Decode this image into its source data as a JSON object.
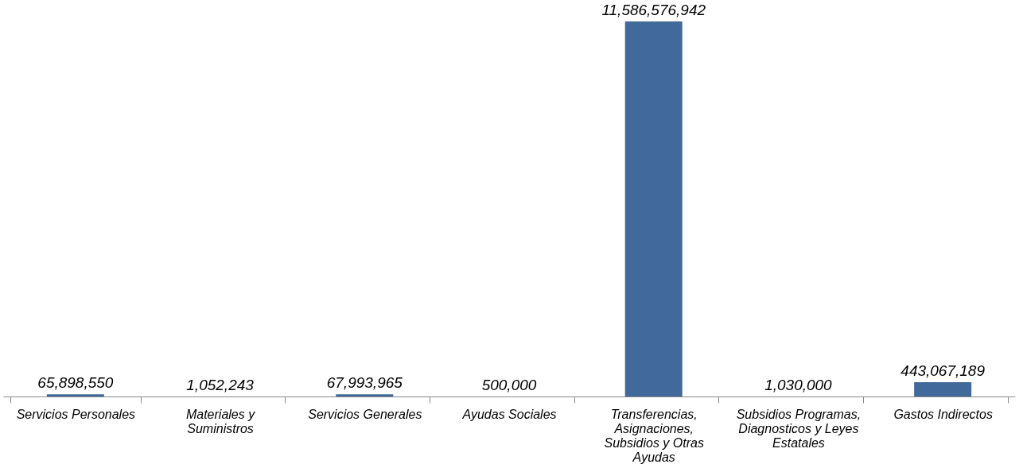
{
  "chart_data": {
    "type": "bar",
    "categories": [
      "Servicios Personales",
      "Materiales y Suministros",
      "Servicios Generales",
      "Ayudas Sociales",
      "Transferencias, Asignaciones, Subsidios y Otras Ayudas",
      "Subsidios Programas, Diagnosticos y Leyes Estatales",
      "Gastos Indirectos"
    ],
    "values": [
      65898550,
      1052243,
      67993965,
      500000,
      11586576942,
      1030000,
      443067189
    ],
    "value_labels": [
      "65,898,550",
      "1,052,243",
      "67,993,965",
      "500,000",
      "11,586,576,942",
      "1,030,000",
      "443,067,189"
    ],
    "color": "#416a9b"
  }
}
